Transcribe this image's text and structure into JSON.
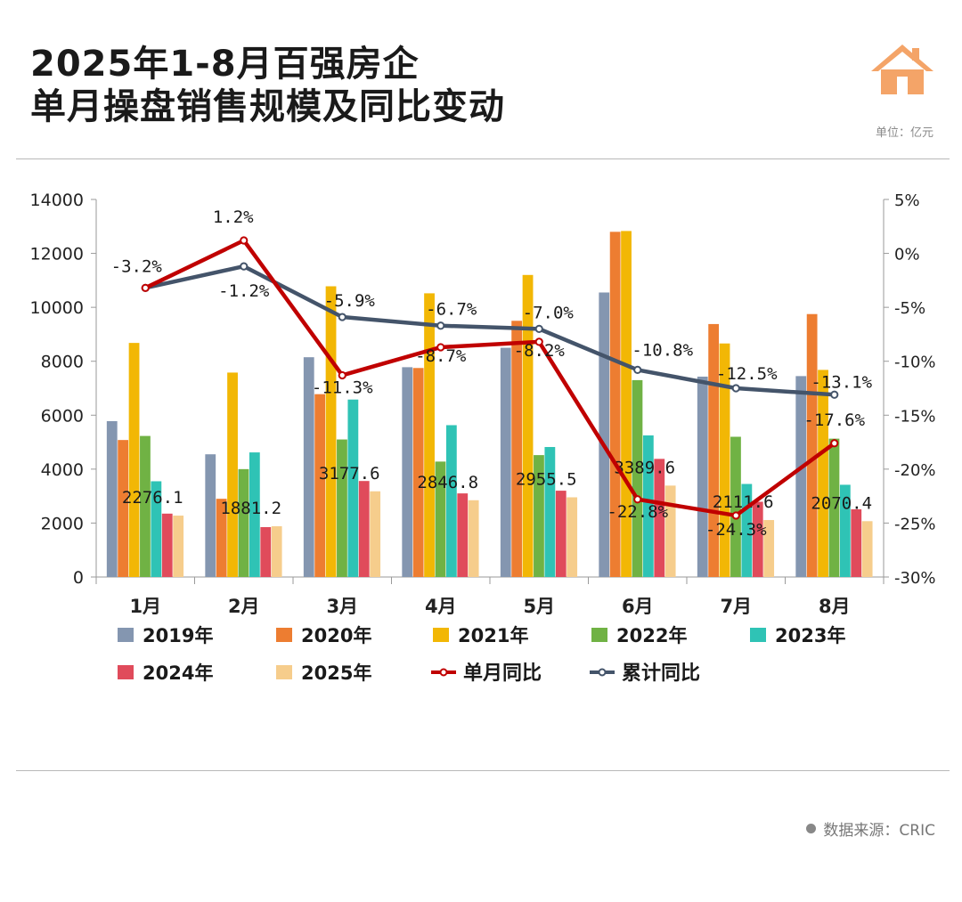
{
  "header": {
    "title_line1": "2025年1-8月百强房企",
    "title_line2": "单月操盘销售规模及同比变动",
    "unit": "单位：亿元"
  },
  "footer": {
    "source": "数据来源：CRIC"
  },
  "colors": {
    "2019年": "#8496b0",
    "2020年": "#ed7d31",
    "2021年": "#f2b705",
    "2022年": "#70b244",
    "2023年": "#2fc3b5",
    "2024年": "#e04b5b",
    "2025年": "#f6cd8c",
    "单月同比": "#c00000",
    "累计同比": "#44546a",
    "accent": "#f4a468"
  },
  "chart_data": {
    "type": "bar",
    "categories": [
      "1月",
      "2月",
      "3月",
      "4月",
      "5月",
      "6月",
      "7月",
      "8月"
    ],
    "series": [
      {
        "name": "2019年",
        "values": [
          5780,
          4550,
          8150,
          7780,
          8500,
          10550,
          7430,
          7450
        ]
      },
      {
        "name": "2020年",
        "values": [
          5080,
          2900,
          6780,
          7750,
          9500,
          12800,
          9380,
          9750
        ]
      },
      {
        "name": "2021年",
        "values": [
          8680,
          7580,
          10780,
          10520,
          11200,
          12830,
          8660,
          7680
        ]
      },
      {
        "name": "2022年",
        "values": [
          5230,
          4000,
          5100,
          4280,
          4520,
          7300,
          5200,
          5130
        ]
      },
      {
        "name": "2023年",
        "values": [
          3550,
          4620,
          6580,
          5630,
          4820,
          5250,
          3450,
          3420
        ]
      },
      {
        "name": "2024年",
        "values": [
          2350,
          1850,
          3560,
          3100,
          3200,
          4380,
          2790,
          2510
        ]
      },
      {
        "name": "2025年",
        "values": [
          2276.1,
          1881.2,
          3177.6,
          2846.8,
          2955.5,
          3389.6,
          2111.6,
          2070.4
        ]
      }
    ],
    "line_series": [
      {
        "name": "单月同比",
        "values": [
          -3.2,
          1.2,
          -11.3,
          -8.7,
          -8.2,
          -22.8,
          -24.3,
          -17.6
        ]
      },
      {
        "name": "累计同比",
        "values": [
          -3.2,
          -1.2,
          -5.9,
          -6.7,
          -7.0,
          -10.8,
          -12.5,
          -13.1
        ]
      }
    ],
    "bar_labels": [
      "2276.1",
      "1881.2",
      "3177.6",
      "2846.8",
      "2955.5",
      "3389.6",
      "2111.6",
      "2070.4"
    ],
    "monthly_labels": [
      "-3.2%",
      "1.2%",
      "-11.3%",
      "-8.7%",
      "-8.2%",
      "-22.8%",
      "-24.3%",
      "-17.6%"
    ],
    "cumulative_labels": [
      "",
      "-1.2%",
      "-5.9%",
      "-6.7%",
      "-7.0%",
      "-10.8%",
      "-12.5%",
      "-13.1%"
    ],
    "y_left_ticks": [
      "0",
      "2000",
      "4000",
      "6000",
      "8000",
      "10000",
      "12000",
      "14000"
    ],
    "y_right_ticks": [
      "5%",
      "0%",
      "-5%",
      "-10%",
      "-15%",
      "-20%",
      "-25%",
      "-30%"
    ],
    "ylim_left": [
      0,
      14000
    ],
    "ylim_right": [
      -30,
      5
    ],
    "grid": false,
    "legend": {
      "position": "bottom",
      "items": [
        "2019年",
        "2020年",
        "2021年",
        "2022年",
        "2023年",
        "2024年",
        "2025年",
        "单月同比",
        "累计同比"
      ]
    }
  }
}
